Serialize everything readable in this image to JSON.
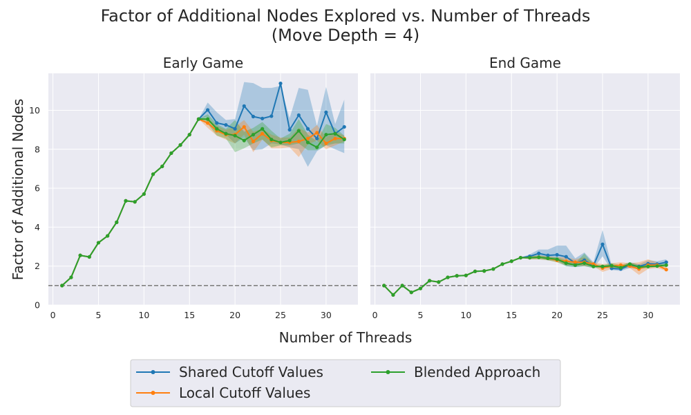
{
  "figure": {
    "title_line1": "Factor of Additional Nodes Explored vs. Number of Threads",
    "title_line2": "(Move Depth = 4)",
    "xlabel": "Number of Threads",
    "ylabel": "Factor of Additional Nodes"
  },
  "colors": {
    "background": "#eaeaf2",
    "grid": "#ffffff",
    "shared": "#1f77b4",
    "local": "#ff7f0e",
    "blended": "#2ca02c",
    "reference_line": "#808080"
  },
  "legend": {
    "entries": [
      "Shared Cutoff Values",
      "Local Cutoff Values",
      "Blended Approach"
    ],
    "placement": "bottom-center",
    "columns": 2
  },
  "chart_data": [
    {
      "type": "line",
      "title": "Early Game",
      "xlim": [
        -0.5,
        33.5
      ],
      "ylim": [
        0,
        11.9
      ],
      "xticks": [
        0,
        5,
        10,
        15,
        20,
        25,
        30
      ],
      "yticks": [
        0,
        2,
        4,
        6,
        8,
        10
      ],
      "grid": true,
      "reference_line_y": 1,
      "x": [
        1,
        2,
        3,
        4,
        5,
        6,
        7,
        8,
        9,
        10,
        11,
        12,
        13,
        14,
        15,
        16,
        17,
        18,
        19,
        20,
        21,
        22,
        23,
        24,
        25,
        26,
        27,
        28,
        29,
        30,
        31,
        32
      ],
      "series": [
        {
          "name": "Shared Cutoff Values",
          "values": [
            1.0,
            1.42,
            2.55,
            2.47,
            3.2,
            3.55,
            4.25,
            5.35,
            5.3,
            5.7,
            6.72,
            7.12,
            7.8,
            8.22,
            8.75,
            9.55,
            10.02,
            9.35,
            9.25,
            9.05,
            10.22,
            9.68,
            9.58,
            9.7,
            11.38,
            9.0,
            9.75,
            9.05,
            8.55,
            9.9,
            8.8,
            9.15
          ],
          "lower": [
            1.0,
            1.42,
            2.55,
            2.47,
            3.2,
            3.55,
            4.25,
            5.35,
            5.3,
            5.7,
            6.72,
            7.12,
            7.8,
            8.22,
            8.75,
            9.55,
            9.65,
            8.9,
            8.75,
            8.3,
            8.6,
            7.95,
            8.0,
            8.3,
            8.25,
            8.1,
            8.0,
            7.1,
            7.9,
            8.2,
            8.0,
            7.8
          ],
          "upper": [
            1.0,
            1.42,
            2.55,
            2.47,
            3.2,
            3.55,
            4.25,
            5.35,
            5.3,
            5.7,
            6.72,
            7.12,
            7.8,
            8.22,
            8.75,
            9.55,
            10.4,
            9.9,
            9.5,
            9.55,
            11.45,
            11.4,
            11.15,
            11.15,
            11.25,
            9.6,
            11.15,
            11.05,
            9.2,
            11.2,
            9.3,
            10.55
          ]
        },
        {
          "name": "Local Cutoff Values",
          "values": [
            1.0,
            1.42,
            2.55,
            2.47,
            3.2,
            3.55,
            4.25,
            5.35,
            5.3,
            5.7,
            6.72,
            7.12,
            7.8,
            8.22,
            8.75,
            9.55,
            9.35,
            8.95,
            8.75,
            8.75,
            9.15,
            8.4,
            8.8,
            8.45,
            8.35,
            8.35,
            8.4,
            8.55,
            8.85,
            8.3,
            8.55,
            8.55
          ],
          "lower": [
            1.0,
            1.42,
            2.55,
            2.47,
            3.2,
            3.55,
            4.25,
            5.35,
            5.3,
            5.7,
            6.72,
            7.12,
            7.8,
            8.22,
            8.75,
            9.55,
            9.1,
            8.7,
            8.5,
            8.3,
            8.75,
            7.85,
            8.5,
            8.05,
            8.05,
            8.1,
            7.6,
            8.25,
            8.45,
            8.0,
            8.2,
            8.4
          ],
          "upper": [
            1.0,
            1.42,
            2.55,
            2.47,
            3.2,
            3.55,
            4.25,
            5.35,
            5.3,
            5.7,
            6.72,
            7.12,
            7.8,
            8.22,
            8.75,
            9.55,
            9.6,
            9.2,
            9.0,
            9.15,
            9.5,
            8.9,
            9.05,
            8.75,
            8.6,
            8.6,
            9.1,
            8.85,
            9.25,
            8.6,
            8.9,
            8.7
          ]
        },
        {
          "name": "Blended Approach",
          "values": [
            1.0,
            1.42,
            2.55,
            2.47,
            3.2,
            3.55,
            4.25,
            5.35,
            5.3,
            5.7,
            6.72,
            7.12,
            7.8,
            8.22,
            8.75,
            9.55,
            9.55,
            9.05,
            8.8,
            8.7,
            8.45,
            8.75,
            9.05,
            8.5,
            8.35,
            8.45,
            8.95,
            8.35,
            8.1,
            8.75,
            8.8,
            8.5
          ],
          "lower": [
            1.0,
            1.42,
            2.55,
            2.47,
            3.2,
            3.55,
            4.25,
            5.35,
            5.3,
            5.7,
            6.72,
            7.12,
            7.8,
            8.22,
            8.75,
            9.55,
            9.3,
            8.7,
            8.55,
            7.85,
            8.05,
            8.3,
            8.5,
            8.1,
            8.2,
            8.2,
            8.3,
            7.95,
            7.95,
            8.2,
            8.3,
            8.3
          ],
          "upper": [
            1.0,
            1.42,
            2.55,
            2.47,
            3.2,
            3.55,
            4.25,
            5.35,
            5.3,
            5.7,
            6.72,
            7.12,
            7.8,
            8.22,
            8.75,
            9.55,
            9.8,
            9.3,
            9.05,
            9.5,
            8.9,
            9.1,
            9.4,
            8.95,
            8.55,
            8.8,
            9.55,
            8.75,
            8.4,
            9.3,
            9.1,
            8.7
          ]
        }
      ]
    },
    {
      "type": "line",
      "title": "End Game",
      "xlim": [
        -0.5,
        33.5
      ],
      "ylim": [
        0,
        11.9
      ],
      "xticks": [
        0,
        5,
        10,
        15,
        20,
        25,
        30
      ],
      "yticks": [
        0,
        2,
        4,
        6,
        8,
        10
      ],
      "grid": true,
      "reference_line_y": 1,
      "x": [
        1,
        2,
        3,
        4,
        5,
        6,
        7,
        8,
        9,
        10,
        11,
        12,
        13,
        14,
        15,
        16,
        17,
        18,
        19,
        20,
        21,
        22,
        23,
        24,
        25,
        26,
        27,
        28,
        29,
        30,
        31,
        32
      ],
      "series": [
        {
          "name": "Shared Cutoff Values",
          "values": [
            1.0,
            0.52,
            1.0,
            0.65,
            0.85,
            1.25,
            1.18,
            1.42,
            1.5,
            1.52,
            1.73,
            1.75,
            1.85,
            2.1,
            2.25,
            2.43,
            2.5,
            2.65,
            2.55,
            2.58,
            2.48,
            2.15,
            2.3,
            2.02,
            3.12,
            1.88,
            1.85,
            2.05,
            1.98,
            2.12,
            2.1,
            2.2
          ],
          "lower": [
            1.0,
            0.52,
            1.0,
            0.65,
            0.85,
            1.25,
            1.18,
            1.42,
            1.5,
            1.52,
            1.73,
            1.75,
            1.85,
            2.1,
            2.25,
            2.43,
            2.4,
            2.45,
            2.3,
            2.3,
            2.0,
            1.95,
            2.0,
            1.9,
            2.5,
            1.8,
            1.75,
            1.9,
            1.85,
            1.95,
            1.95,
            2.05
          ],
          "upper": [
            1.0,
            0.52,
            1.0,
            0.65,
            0.85,
            1.25,
            1.18,
            1.42,
            1.5,
            1.52,
            1.73,
            1.75,
            1.85,
            2.1,
            2.25,
            2.43,
            2.6,
            2.85,
            2.85,
            3.05,
            3.05,
            2.4,
            2.7,
            2.2,
            3.85,
            2.05,
            2.0,
            2.2,
            2.1,
            2.3,
            2.25,
            2.35
          ]
        },
        {
          "name": "Local Cutoff Values",
          "values": [
            1.0,
            0.52,
            1.0,
            0.65,
            0.85,
            1.25,
            1.18,
            1.42,
            1.5,
            1.52,
            1.73,
            1.75,
            1.85,
            2.1,
            2.25,
            2.43,
            2.43,
            2.45,
            2.4,
            2.3,
            2.25,
            2.2,
            2.2,
            2.1,
            1.9,
            2.0,
            2.05,
            2.0,
            1.85,
            2.05,
            2.05,
            1.82
          ],
          "lower": [
            1.0,
            0.52,
            1.0,
            0.65,
            0.85,
            1.25,
            1.18,
            1.42,
            1.5,
            1.52,
            1.73,
            1.75,
            1.85,
            2.1,
            2.25,
            2.43,
            2.35,
            2.35,
            2.3,
            2.2,
            2.05,
            2.05,
            2.0,
            2.0,
            1.7,
            1.85,
            1.9,
            1.9,
            1.55,
            1.85,
            1.9,
            1.75
          ],
          "upper": [
            1.0,
            0.52,
            1.0,
            0.65,
            0.85,
            1.25,
            1.18,
            1.42,
            1.5,
            1.52,
            1.73,
            1.75,
            1.85,
            2.1,
            2.25,
            2.43,
            2.5,
            2.55,
            2.5,
            2.45,
            2.45,
            2.35,
            2.45,
            2.2,
            2.1,
            2.15,
            2.2,
            2.15,
            2.2,
            2.35,
            2.2,
            1.95
          ]
        },
        {
          "name": "Blended Approach",
          "values": [
            1.0,
            0.52,
            1.0,
            0.65,
            0.85,
            1.25,
            1.18,
            1.42,
            1.5,
            1.52,
            1.73,
            1.75,
            1.85,
            2.1,
            2.25,
            2.43,
            2.43,
            2.45,
            2.4,
            2.35,
            2.15,
            2.05,
            2.15,
            1.98,
            1.98,
            2.02,
            1.92,
            2.1,
            1.95,
            1.98,
            2.0,
            2.05
          ],
          "lower": [
            1.0,
            0.52,
            1.0,
            0.65,
            0.85,
            1.25,
            1.18,
            1.42,
            1.5,
            1.52,
            1.73,
            1.75,
            1.85,
            2.1,
            2.25,
            2.43,
            2.35,
            2.35,
            2.3,
            2.2,
            2.0,
            1.95,
            2.0,
            1.9,
            1.9,
            1.9,
            1.8,
            2.0,
            1.85,
            1.9,
            1.95,
            1.95
          ],
          "upper": [
            1.0,
            0.52,
            1.0,
            0.65,
            0.85,
            1.25,
            1.18,
            1.42,
            1.5,
            1.52,
            1.73,
            1.75,
            1.85,
            2.1,
            2.25,
            2.43,
            2.5,
            2.55,
            2.5,
            2.45,
            2.3,
            2.15,
            2.65,
            2.1,
            2.05,
            2.15,
            2.05,
            2.2,
            2.05,
            2.1,
            2.1,
            2.15
          ]
        }
      ]
    }
  ]
}
